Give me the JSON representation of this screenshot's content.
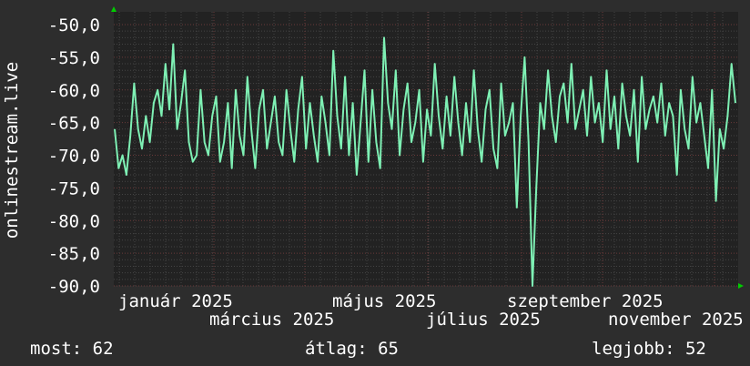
{
  "chart_data": {
    "type": "line",
    "ylabel": "onlinestream.live",
    "ylim": [
      -90,
      -50
    ],
    "yticks": [
      "-50,0",
      "-55,0",
      "-60,0",
      "-65,0",
      "-70,0",
      "-75,0",
      "-80,0",
      "-85,0",
      "-90,0"
    ],
    "xticks": [
      "január 2025",
      "március 2025",
      "május 2025",
      "július 2025",
      "szeptember 2025",
      "november 2025"
    ],
    "grid": true,
    "line_color": "#7ef0b4",
    "values": [
      -66,
      -72,
      -70,
      -73,
      -67,
      -59,
      -66,
      -69,
      -64,
      -68,
      -62,
      -60,
      -64,
      -56,
      -63,
      -53,
      -66,
      -62,
      -57,
      -68,
      -71,
      -70,
      -60,
      -68,
      -70,
      -64,
      -61,
      -71,
      -68,
      -62,
      -72,
      -60,
      -67,
      -70,
      -58,
      -66,
      -72,
      -63,
      -60,
      -69,
      -65,
      -61,
      -68,
      -70,
      -60,
      -66,
      -71,
      -63,
      -58,
      -69,
      -62,
      -67,
      -71,
      -61,
      -65,
      -70,
      -54,
      -64,
      -69,
      -58,
      -70,
      -62,
      -73,
      -65,
      -57,
      -71,
      -60,
      -68,
      -72,
      -52,
      -62,
      -66,
      -57,
      -70,
      -63,
      -59,
      -68,
      -65,
      -60,
      -71,
      -63,
      -67,
      -56,
      -64,
      -69,
      -61,
      -67,
      -58,
      -65,
      -70,
      -62,
      -68,
      -57,
      -66,
      -71,
      -63,
      -60,
      -69,
      -72,
      -59,
      -67,
      -65,
      -62,
      -78,
      -64,
      -55,
      -68,
      -90,
      -75,
      -62,
      -66,
      -57,
      -64,
      -68,
      -61,
      -59,
      -65,
      -56,
      -66,
      -63,
      -60,
      -67,
      -58,
      -65,
      -62,
      -68,
      -57,
      -66,
      -61,
      -69,
      -59,
      -64,
      -67,
      -60,
      -71,
      -58,
      -66,
      -63,
      -61,
      -65,
      -59,
      -67,
      -62,
      -64,
      -73,
      -60,
      -66,
      -69,
      -58,
      -65,
      -62,
      -67,
      -72,
      -60,
      -77,
      -66,
      -69,
      -64,
      -56,
      -62
    ]
  },
  "footer": {
    "current": "most: 62",
    "average": "átlag: 65",
    "best": "legjobb: 52"
  }
}
